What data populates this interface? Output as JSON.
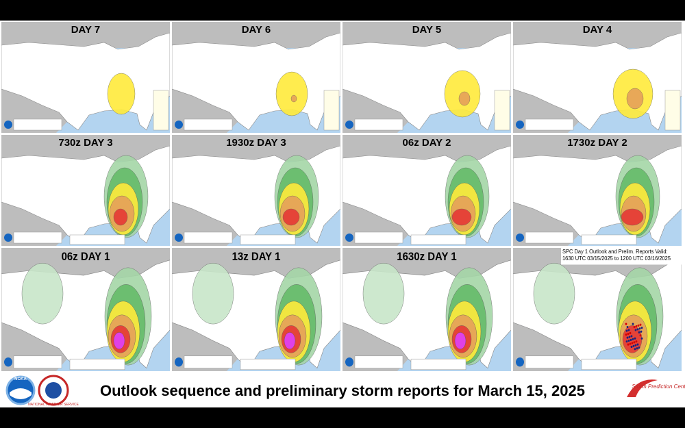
{
  "panels": [
    {
      "label": "DAY 7"
    },
    {
      "label": "DAY 6"
    },
    {
      "label": "DAY 5"
    },
    {
      "label": "DAY 4"
    },
    {
      "label": "730z DAY 3"
    },
    {
      "label": "1930z DAY 3"
    },
    {
      "label": "06z DAY 2"
    },
    {
      "label": "1730z DAY 2"
    },
    {
      "label": "06z DAY 1"
    },
    {
      "label": "13z DAY 1"
    },
    {
      "label": "1630z DAY 1"
    },
    {
      "label": "",
      "note": "SPC Day 1 Outlook and Prelim. Reports Valid: 1630 UTC 03/15/2025 to 1200 UTC 03/16/2025"
    }
  ],
  "footer": {
    "caption": "Outlook sequence and preliminary storm reports for March 15, 2025",
    "noaa": "NOAA",
    "nws": "NATIONAL WEATHER SERVICE",
    "spc": "Storm Prediction Center"
  }
}
